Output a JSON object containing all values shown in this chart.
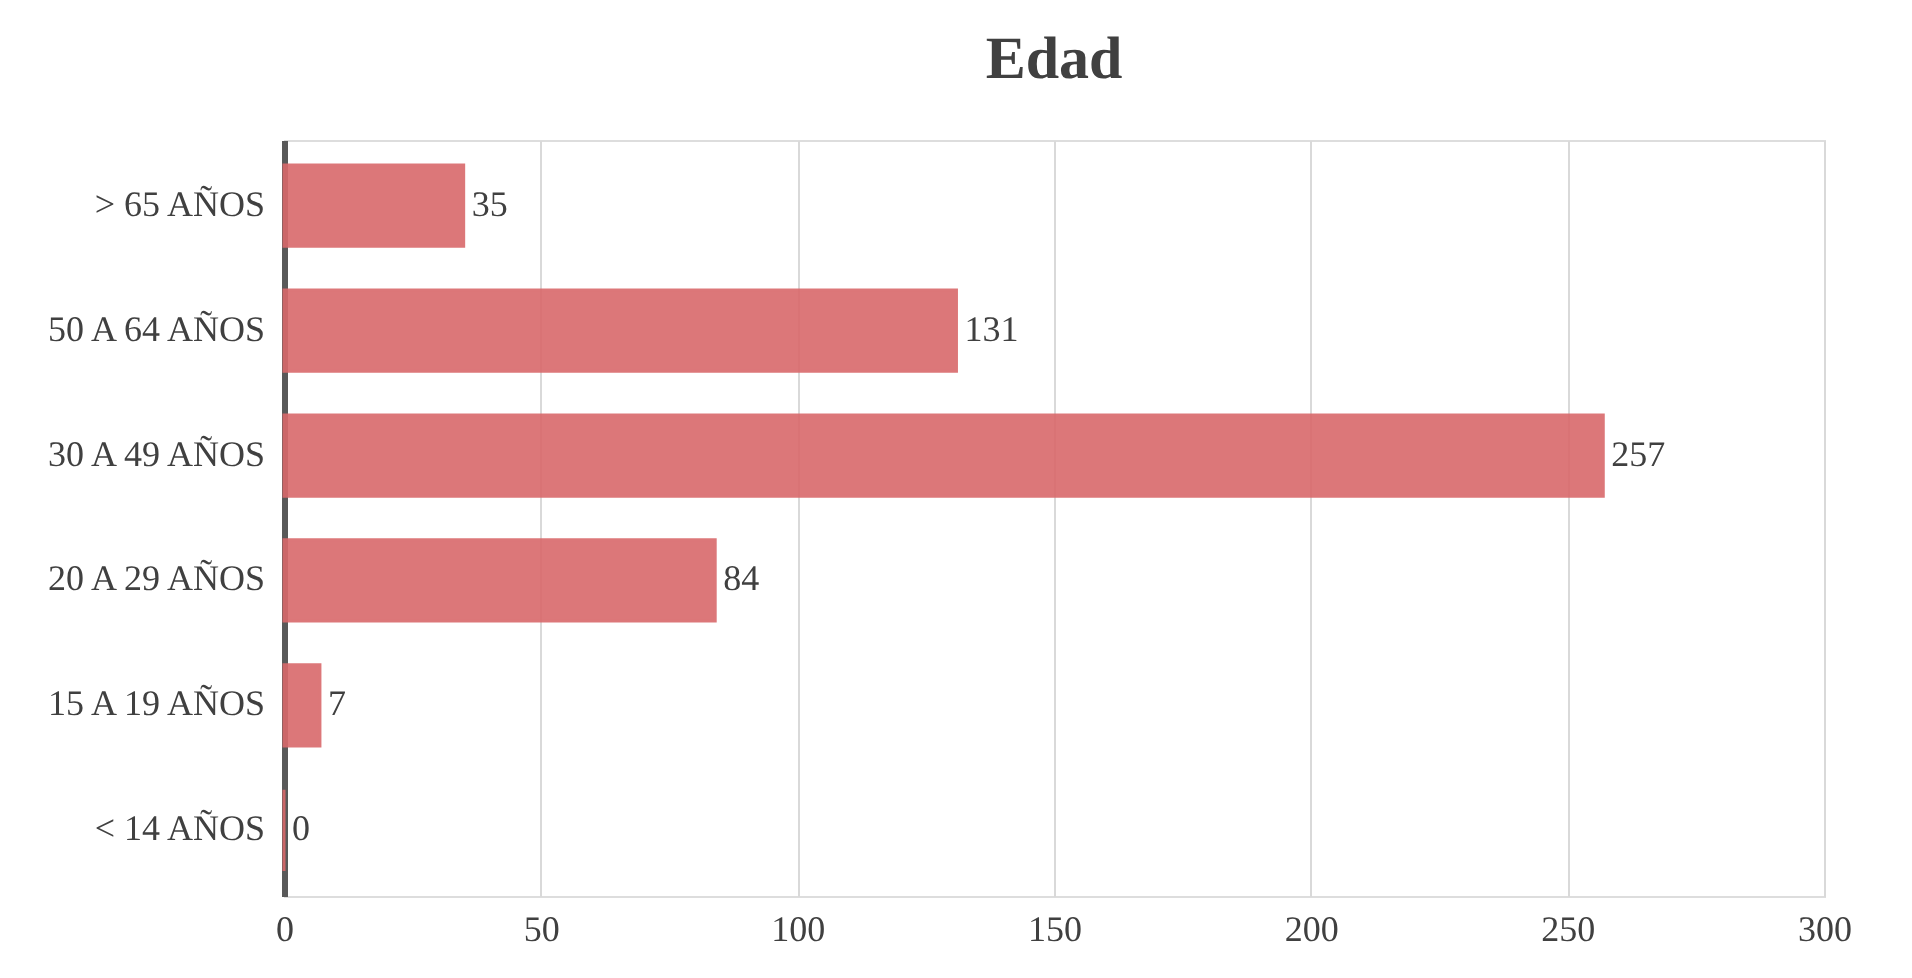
{
  "chart_data": {
    "type": "bar",
    "orientation": "horizontal",
    "title": "Edad",
    "categories": [
      "> 65 AÑOS",
      "50 A 64 AÑOS",
      "30 A 49 AÑOS",
      "20 A 29 AÑOS",
      "15 A 19 AÑOS",
      "< 14 AÑOS"
    ],
    "values": [
      35,
      131,
      257,
      84,
      7,
      0
    ],
    "color": "#d9696b",
    "xlim": [
      0,
      300
    ],
    "xticks": [
      0,
      50,
      100,
      150,
      200,
      250,
      300
    ],
    "grid": "x",
    "data_labels": true
  }
}
